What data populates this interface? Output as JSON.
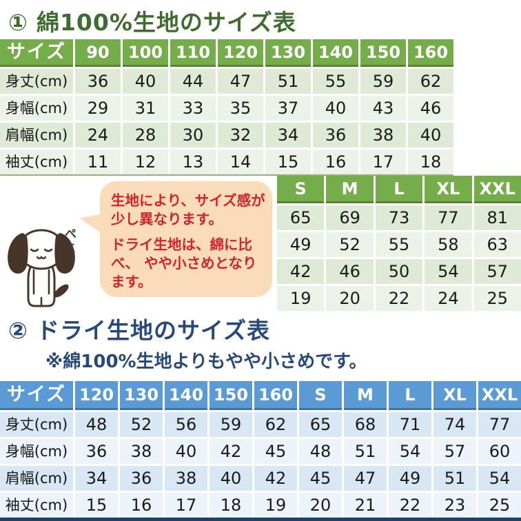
{
  "page": {
    "background": "#ffffff"
  },
  "section1": {
    "number": "①",
    "title": "綿100%生地のサイズ表",
    "title_color": "#3e6b2e",
    "table": {
      "header_bg": "#76ad4b",
      "header_border": "#55832f",
      "band_a": "#dee9d6",
      "band_b": "#ecf2e8",
      "corner_label": "サイズ",
      "columns": [
        "90",
        "100",
        "110",
        "120",
        "130",
        "140",
        "150",
        "160"
      ],
      "rows": [
        {
          "label": "身丈(cm)",
          "values": [
            "36",
            "40",
            "44",
            "47",
            "51",
            "55",
            "59",
            "62"
          ]
        },
        {
          "label": "身幅(cm)",
          "values": [
            "29",
            "31",
            "33",
            "35",
            "37",
            "40",
            "43",
            "46"
          ]
        },
        {
          "label": "肩幅(cm)",
          "values": [
            "24",
            "28",
            "30",
            "32",
            "34",
            "36",
            "38",
            "40"
          ]
        },
        {
          "label": "袖丈(cm)",
          "values": [
            "11",
            "12",
            "13",
            "14",
            "15",
            "16",
            "17",
            "18"
          ]
        }
      ]
    },
    "side_table": {
      "header_bg": "#76ad4b",
      "columns": [
        "S",
        "M",
        "L",
        "XL",
        "XXL"
      ],
      "rows": [
        {
          "values": [
            "65",
            "69",
            "73",
            "77",
            "81"
          ]
        },
        {
          "values": [
            "49",
            "52",
            "55",
            "58",
            "63"
          ]
        },
        {
          "values": [
            "42",
            "46",
            "50",
            "54",
            "57"
          ]
        },
        {
          "values": [
            "19",
            "20",
            "22",
            "24",
            "25"
          ]
        }
      ]
    }
  },
  "callout": {
    "bubble_bg": "#fbdcba",
    "text_color": "#d3232a",
    "para1": "生地により、サイズ感が 少し異なります。",
    "para2": "ドライ生地は、綿に比べ、 やや小さめとなります。",
    "dog_caption": "ぺこり"
  },
  "section2": {
    "number": "②",
    "title": "ドライ生地のサイズ表",
    "subtitle": "※綿100%生地よりもやや小さめです。",
    "title_color": "#27497a",
    "table": {
      "header_bg": "#5b9bd5",
      "header_border": "#41719c",
      "band_a": "#d9e6f3",
      "band_b": "#ecf3fb",
      "corner_label": "サイズ",
      "columns": [
        "120",
        "130",
        "140",
        "150",
        "160",
        "S",
        "M",
        "L",
        "XL",
        "XXL"
      ],
      "rows": [
        {
          "label": "身丈(cm)",
          "values": [
            "48",
            "52",
            "56",
            "59",
            "62",
            "65",
            "68",
            "71",
            "74",
            "77"
          ]
        },
        {
          "label": "身幅(cm)",
          "values": [
            "36",
            "38",
            "40",
            "42",
            "45",
            "48",
            "51",
            "54",
            "57",
            "60"
          ]
        },
        {
          "label": "肩幅(cm)",
          "values": [
            "34",
            "36",
            "38",
            "40",
            "42",
            "45",
            "47",
            "49",
            "51",
            "54"
          ]
        },
        {
          "label": "袖丈(cm)",
          "values": [
            "15",
            "16",
            "17",
            "18",
            "19",
            "20",
            "21",
            "22",
            "23",
            "25"
          ]
        }
      ]
    }
  }
}
